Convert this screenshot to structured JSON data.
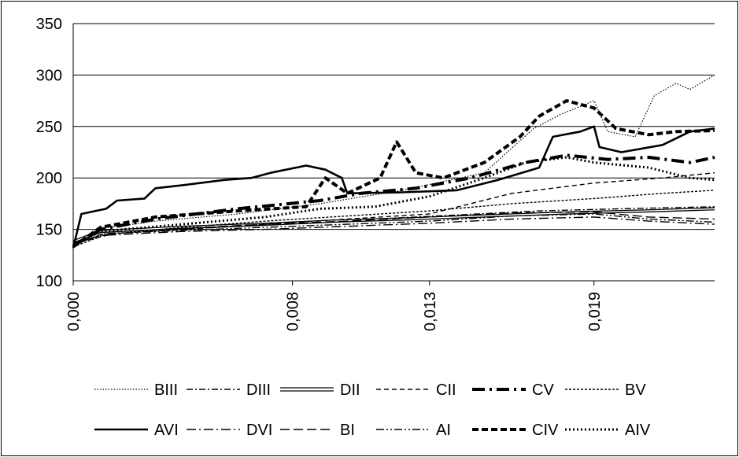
{
  "chart_data": {
    "type": "line",
    "title": "",
    "xlabel": "",
    "ylabel": "",
    "ylim": [
      100,
      350
    ],
    "y_ticks": [
      "100",
      "150",
      "200",
      "250",
      "300",
      "350"
    ],
    "x_tick_labels": [
      "0,000",
      "0,008",
      "0,013",
      "0,019"
    ],
    "x_tick_values": [
      0.0,
      0.008,
      0.013,
      0.019
    ],
    "xlim": [
      0.0,
      0.0234
    ],
    "grid": "horizontal",
    "legend_position": "bottom",
    "legend": [
      "BIII",
      "DIII",
      "DII",
      "CII",
      "CV",
      "BV",
      "AVI",
      "DVI",
      "BI",
      "AI",
      "CIV",
      "AIV"
    ],
    "series": [
      {
        "name": "BIII",
        "style": "dotted-thin",
        "points": [
          [
            0,
            132
          ],
          [
            0.0008,
            150
          ],
          [
            0.003,
            158
          ],
          [
            0.006,
            165
          ],
          [
            0.009,
            175
          ],
          [
            0.012,
            188
          ],
          [
            0.015,
            205
          ],
          [
            0.0168,
            248
          ],
          [
            0.0178,
            262
          ],
          [
            0.019,
            275
          ],
          [
            0.0195,
            245
          ],
          [
            0.0205,
            240
          ],
          [
            0.0212,
            280
          ],
          [
            0.022,
            292
          ],
          [
            0.0225,
            286
          ],
          [
            0.0234,
            300
          ]
        ]
      },
      {
        "name": "DIII",
        "style": "dash-dot",
        "points": [
          [
            0,
            135
          ],
          [
            0.001,
            145
          ],
          [
            0.004,
            150
          ],
          [
            0.008,
            156
          ],
          [
            0.011,
            160
          ],
          [
            0.014,
            164
          ],
          [
            0.017,
            168
          ],
          [
            0.02,
            170
          ],
          [
            0.0234,
            172
          ]
        ]
      },
      {
        "name": "DII",
        "style": "double",
        "points": [
          [
            0,
            138
          ],
          [
            0.001,
            148
          ],
          [
            0.004,
            152
          ],
          [
            0.007,
            155
          ],
          [
            0.0095,
            158
          ],
          [
            0.012,
            160
          ],
          [
            0.015,
            163
          ],
          [
            0.018,
            166
          ],
          [
            0.021,
            168
          ],
          [
            0.0234,
            170
          ]
        ]
      },
      {
        "name": "CII",
        "style": "dashed",
        "points": [
          [
            0,
            136
          ],
          [
            0.0015,
            146
          ],
          [
            0.004,
            150
          ],
          [
            0.007,
            155
          ],
          [
            0.01,
            160
          ],
          [
            0.013,
            165
          ],
          [
            0.016,
            185
          ],
          [
            0.019,
            195
          ],
          [
            0.0215,
            200
          ],
          [
            0.0234,
            205
          ]
        ]
      },
      {
        "name": "CV",
        "style": "heavy-dash-dot",
        "points": [
          [
            0,
            134
          ],
          [
            0.001,
            150
          ],
          [
            0.003,
            160
          ],
          [
            0.006,
            170
          ],
          [
            0.009,
            178
          ],
          [
            0.0105,
            185
          ],
          [
            0.0125,
            190
          ],
          [
            0.0145,
            200
          ],
          [
            0.0165,
            215
          ],
          [
            0.018,
            222
          ],
          [
            0.0195,
            218
          ],
          [
            0.021,
            220
          ],
          [
            0.0225,
            215
          ],
          [
            0.0234,
            220
          ]
        ]
      },
      {
        "name": "BV",
        "style": "short-dash",
        "points": [
          [
            0,
            133
          ],
          [
            0.0012,
            145
          ],
          [
            0.004,
            152
          ],
          [
            0.007,
            158
          ],
          [
            0.01,
            163
          ],
          [
            0.013,
            168
          ],
          [
            0.016,
            175
          ],
          [
            0.019,
            180
          ],
          [
            0.0215,
            185
          ],
          [
            0.0234,
            188
          ]
        ]
      },
      {
        "name": "AVI",
        "style": "solid-heavy",
        "points": [
          [
            0,
            132
          ],
          [
            0.0003,
            165
          ],
          [
            0.0012,
            170
          ],
          [
            0.0016,
            178
          ],
          [
            0.0026,
            180
          ],
          [
            0.003,
            190
          ],
          [
            0.004,
            193
          ],
          [
            0.0055,
            198
          ],
          [
            0.0065,
            200
          ],
          [
            0.0072,
            205
          ],
          [
            0.0085,
            212
          ],
          [
            0.0092,
            208
          ],
          [
            0.0098,
            200
          ],
          [
            0.01,
            185
          ],
          [
            0.012,
            186
          ],
          [
            0.014,
            188
          ],
          [
            0.0155,
            198
          ],
          [
            0.017,
            210
          ],
          [
            0.0175,
            240
          ],
          [
            0.0185,
            245
          ],
          [
            0.019,
            250
          ],
          [
            0.0192,
            230
          ],
          [
            0.02,
            225
          ],
          [
            0.0215,
            232
          ],
          [
            0.0225,
            245
          ],
          [
            0.0234,
            248
          ]
        ]
      },
      {
        "name": "DVI",
        "style": "long-dash-dot",
        "points": [
          [
            0,
            136
          ],
          [
            0.001,
            144
          ],
          [
            0.004,
            148
          ],
          [
            0.007,
            150
          ],
          [
            0.01,
            153
          ],
          [
            0.013,
            156
          ],
          [
            0.016,
            160
          ],
          [
            0.019,
            162
          ],
          [
            0.021,
            158
          ],
          [
            0.0234,
            155
          ]
        ]
      },
      {
        "name": "BI",
        "style": "long-dash",
        "points": [
          [
            0,
            137
          ],
          [
            0.001,
            147
          ],
          [
            0.004,
            151
          ],
          [
            0.007,
            155
          ],
          [
            0.01,
            158
          ],
          [
            0.013,
            162
          ],
          [
            0.016,
            166
          ],
          [
            0.019,
            167
          ],
          [
            0.021,
            162
          ],
          [
            0.0234,
            160
          ]
        ]
      },
      {
        "name": "AI",
        "style": "dash-dot-dot",
        "points": [
          [
            0,
            135
          ],
          [
            0.0012,
            146
          ],
          [
            0.004,
            149
          ],
          [
            0.007,
            152
          ],
          [
            0.01,
            155
          ],
          [
            0.013,
            158
          ],
          [
            0.016,
            163
          ],
          [
            0.019,
            165
          ],
          [
            0.021,
            160
          ],
          [
            0.0234,
            157
          ]
        ]
      },
      {
        "name": "CIV",
        "style": "heavy-dashed",
        "points": [
          [
            0,
            133
          ],
          [
            0.001,
            152
          ],
          [
            0.003,
            162
          ],
          [
            0.006,
            168
          ],
          [
            0.0085,
            172
          ],
          [
            0.0092,
            200
          ],
          [
            0.01,
            185
          ],
          [
            0.0112,
            200
          ],
          [
            0.0118,
            235
          ],
          [
            0.0125,
            205
          ],
          [
            0.0135,
            200
          ],
          [
            0.015,
            215
          ],
          [
            0.0163,
            240
          ],
          [
            0.017,
            260
          ],
          [
            0.018,
            275
          ],
          [
            0.019,
            268
          ],
          [
            0.0198,
            248
          ],
          [
            0.021,
            242
          ],
          [
            0.022,
            245
          ],
          [
            0.0234,
            246
          ]
        ]
      },
      {
        "name": "AIV",
        "style": "heavy-dotted",
        "points": [
          [
            0,
            134
          ],
          [
            0.001,
            148
          ],
          [
            0.004,
            155
          ],
          [
            0.007,
            162
          ],
          [
            0.009,
            170
          ],
          [
            0.011,
            172
          ],
          [
            0.013,
            182
          ],
          [
            0.015,
            200
          ],
          [
            0.0165,
            215
          ],
          [
            0.018,
            220
          ],
          [
            0.019,
            215
          ],
          [
            0.021,
            210
          ],
          [
            0.0225,
            200
          ],
          [
            0.0234,
            198
          ]
        ]
      }
    ]
  }
}
